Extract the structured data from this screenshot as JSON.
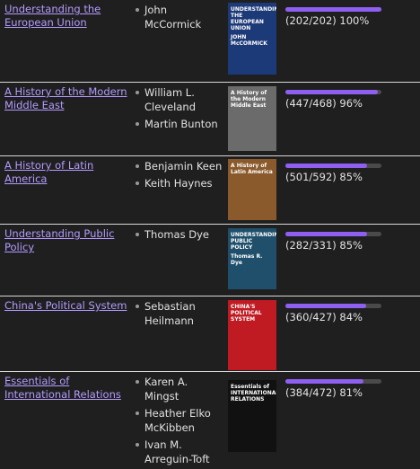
{
  "books": [
    {
      "title": "Understanding the European Union",
      "authors": [
        "John McCormick"
      ],
      "cover": [
        "UNDERSTANDING THE EUROPEAN UNION",
        "JOHN McCORMICK"
      ],
      "cover_color": "#1d3a78",
      "progress_label": "(202/202) 100%",
      "percent": 100
    },
    {
      "title": "A History of the Modern Middle East",
      "authors": [
        "William L. Cleveland",
        "Martin Bunton"
      ],
      "cover": [
        "A History of the Modern Middle East"
      ],
      "cover_color": "#6b6b6b",
      "progress_label": "(447/468) 96%",
      "percent": 96
    },
    {
      "title": "A History of Latin America",
      "authors": [
        "Benjamin Keen",
        "Keith Haynes"
      ],
      "cover": [
        "A History of Latin America"
      ],
      "cover_color": "#8a5a2c",
      "progress_label": "(501/592) 85%",
      "percent": 85
    },
    {
      "title": "Understanding Public Policy",
      "authors": [
        "Thomas Dye"
      ],
      "cover": [
        "UNDERSTANDING PUBLIC POLICY",
        "Thomas R. Dye"
      ],
      "cover_color": "#1f4f6a",
      "progress_label": "(282/331) 85%",
      "percent": 85
    },
    {
      "title": "China's Political System",
      "authors": [
        "Sebastian Heilmann"
      ],
      "cover": [
        "CHINA'S POLITICAL SYSTEM"
      ],
      "cover_color": "#c01a22",
      "progress_label": "(360/427) 84%",
      "percent": 84
    },
    {
      "title": "Essentials of International Relations",
      "authors": [
        "Karen A. Mingst",
        "Heather Elko McKibben",
        "Ivan M. Arreguin-Toft"
      ],
      "cover": [
        "Essentials of INTERNATIONAL RELATIONS"
      ],
      "cover_color": "#111111",
      "progress_label": "(384/472) 81%",
      "percent": 81
    }
  ]
}
